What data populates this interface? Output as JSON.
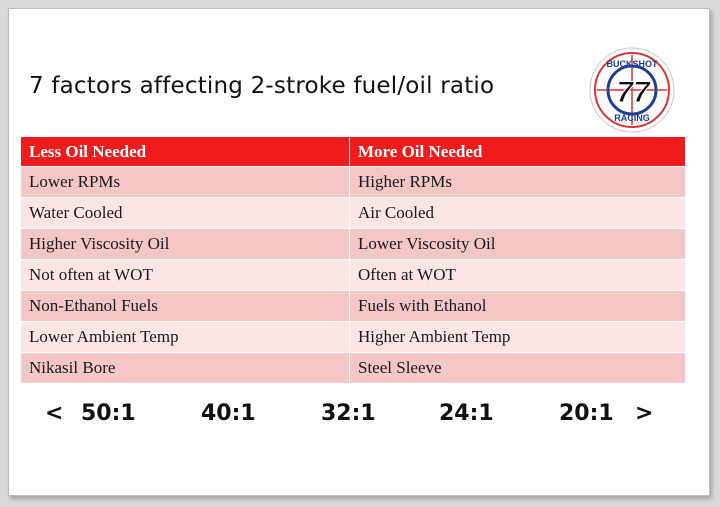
{
  "slide": {
    "title": "7 factors affecting 2-stroke fuel/oil ratio"
  },
  "logo": {
    "number": "77",
    "top_text": "BUCKSHOT",
    "bottom_text": "RACING"
  },
  "table": {
    "headers": [
      "Less Oil Needed",
      "More Oil Needed"
    ],
    "rows": [
      [
        "Lower RPMs",
        "Higher RPMs"
      ],
      [
        "Water Cooled",
        "Air Cooled"
      ],
      [
        "Higher Viscosity Oil",
        "Lower Viscosity Oil"
      ],
      [
        "Not often at WOT",
        "Often at WOT"
      ],
      [
        "Non-Ethanol Fuels",
        "Fuels with Ethanol"
      ],
      [
        "Lower Ambient Temp",
        "Higher Ambient Temp"
      ],
      [
        "Nikasil Bore",
        "Steel Sleeve"
      ]
    ]
  },
  "scale": {
    "left_arrow": "<",
    "ratios": [
      "50:1",
      "40:1",
      "32:1",
      "24:1",
      "20:1"
    ],
    "right_arrow": ">"
  },
  "colors": {
    "header_red": "#ee1c1c",
    "row_dark": "#f4c7c7",
    "row_light": "#fbe5e5",
    "logo_blue": "#1f3f93"
  }
}
